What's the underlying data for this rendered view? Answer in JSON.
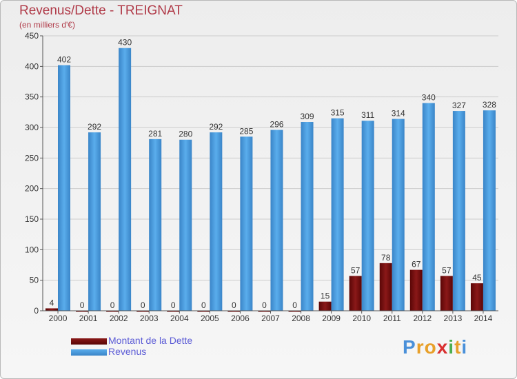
{
  "header": {
    "title": "Revenus/Dette - TREIGNAT",
    "subtitle": "(en milliers d'€)"
  },
  "colors": {
    "dette": "#6b0808",
    "revenus": "#4499e0",
    "title": "#b03a48",
    "legend_text": "#5d5dd6"
  },
  "chart_data": {
    "type": "bar",
    "title": "Revenus/Dette - TREIGNAT",
    "subtitle": "(en milliers d'€)",
    "categories": [
      "2000",
      "2001",
      "2002",
      "2003",
      "2004",
      "2005",
      "2006",
      "2007",
      "2008",
      "2009",
      "2010",
      "2011",
      "2012",
      "2013",
      "2014"
    ],
    "series": [
      {
        "name": "Montant de la Dette",
        "values": [
          4,
          0,
          0,
          0,
          0,
          0,
          0,
          0,
          0,
          15,
          57,
          78,
          67,
          57,
          45
        ]
      },
      {
        "name": "Revenus",
        "values": [
          402,
          292,
          430,
          281,
          280,
          292,
          285,
          296,
          309,
          315,
          311,
          314,
          340,
          327,
          328
        ]
      }
    ],
    "ylim": [
      0,
      450
    ],
    "yticks": [
      0,
      50,
      100,
      150,
      200,
      250,
      300,
      350,
      400,
      450
    ],
    "grid": true,
    "legend": "bottom-left"
  },
  "legend": {
    "items": [
      {
        "label": "Montant de la Dette",
        "color": "#6b0808"
      },
      {
        "label": "Revenus",
        "color": "#4499e0"
      }
    ]
  },
  "logo": {
    "letters": [
      "P",
      "r",
      "o",
      "x",
      "i",
      "t",
      "i"
    ],
    "colors": [
      "#4a90d9",
      "#e8a02a",
      "#e8a02a",
      "#d93030",
      "#4caf50",
      "#e8a02a",
      "#4a90d9"
    ]
  }
}
